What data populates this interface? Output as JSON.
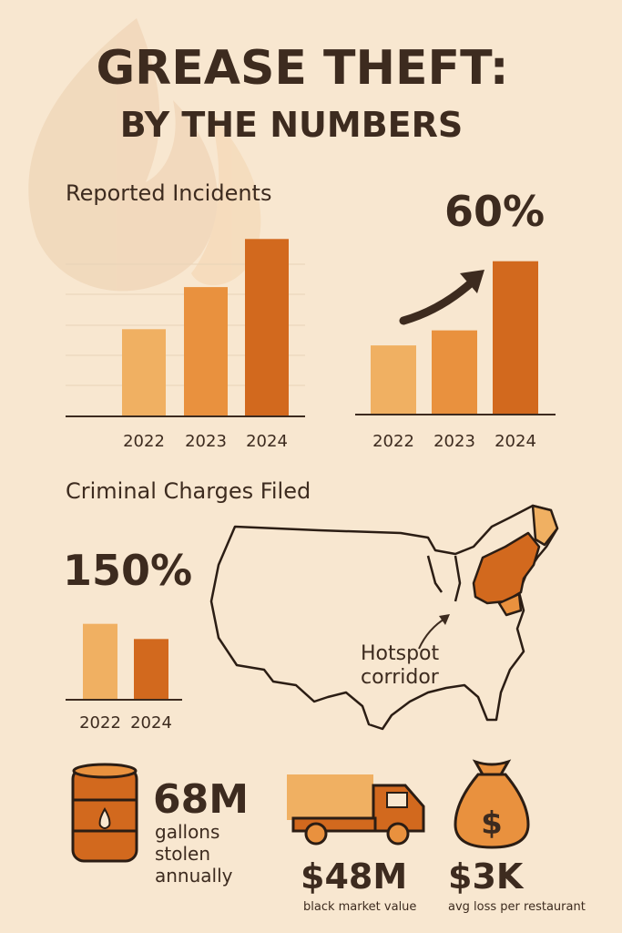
{
  "title": "GREASE THEFT:",
  "subtitle": "BY THE NUMBERS",
  "chart_data": [
    {
      "type": "bar",
      "title": "Reported Incidents",
      "categories": [
        "2022",
        "2023",
        "2024"
      ],
      "values": [
        2.9,
        4.3,
        5.9
      ],
      "colors": [
        "#f0b062",
        "#e9913e",
        "#d2691e"
      ],
      "ylim": [
        0,
        6
      ]
    },
    {
      "type": "bar",
      "annotation": "60%",
      "categories": [
        "2022",
        "2023",
        "2024"
      ],
      "values": [
        2.3,
        2.8,
        5.1
      ],
      "colors": [
        "#f0b062",
        "#e9913e",
        "#d2691e"
      ],
      "ylim": [
        0,
        6
      ]
    },
    {
      "type": "bar",
      "title": "Criminal Charges Filed",
      "annotation": "150%",
      "categories": [
        "2022",
        "2024"
      ],
      "values": [
        2.5,
        2.0
      ],
      "colors": [
        "#f0b062",
        "#d2691e"
      ],
      "ylim": [
        0,
        3
      ]
    }
  ],
  "map": {
    "label_lines": [
      "Hotspot",
      "corridor"
    ]
  },
  "stats": [
    {
      "value": "68M",
      "lines": [
        "gallons",
        "stolen",
        "annually"
      ]
    },
    {
      "value": "$48M",
      "caption": "black market value"
    },
    {
      "value": "$3K",
      "caption": "avg loss per restaurant",
      "icon_symbol": "$"
    }
  ]
}
